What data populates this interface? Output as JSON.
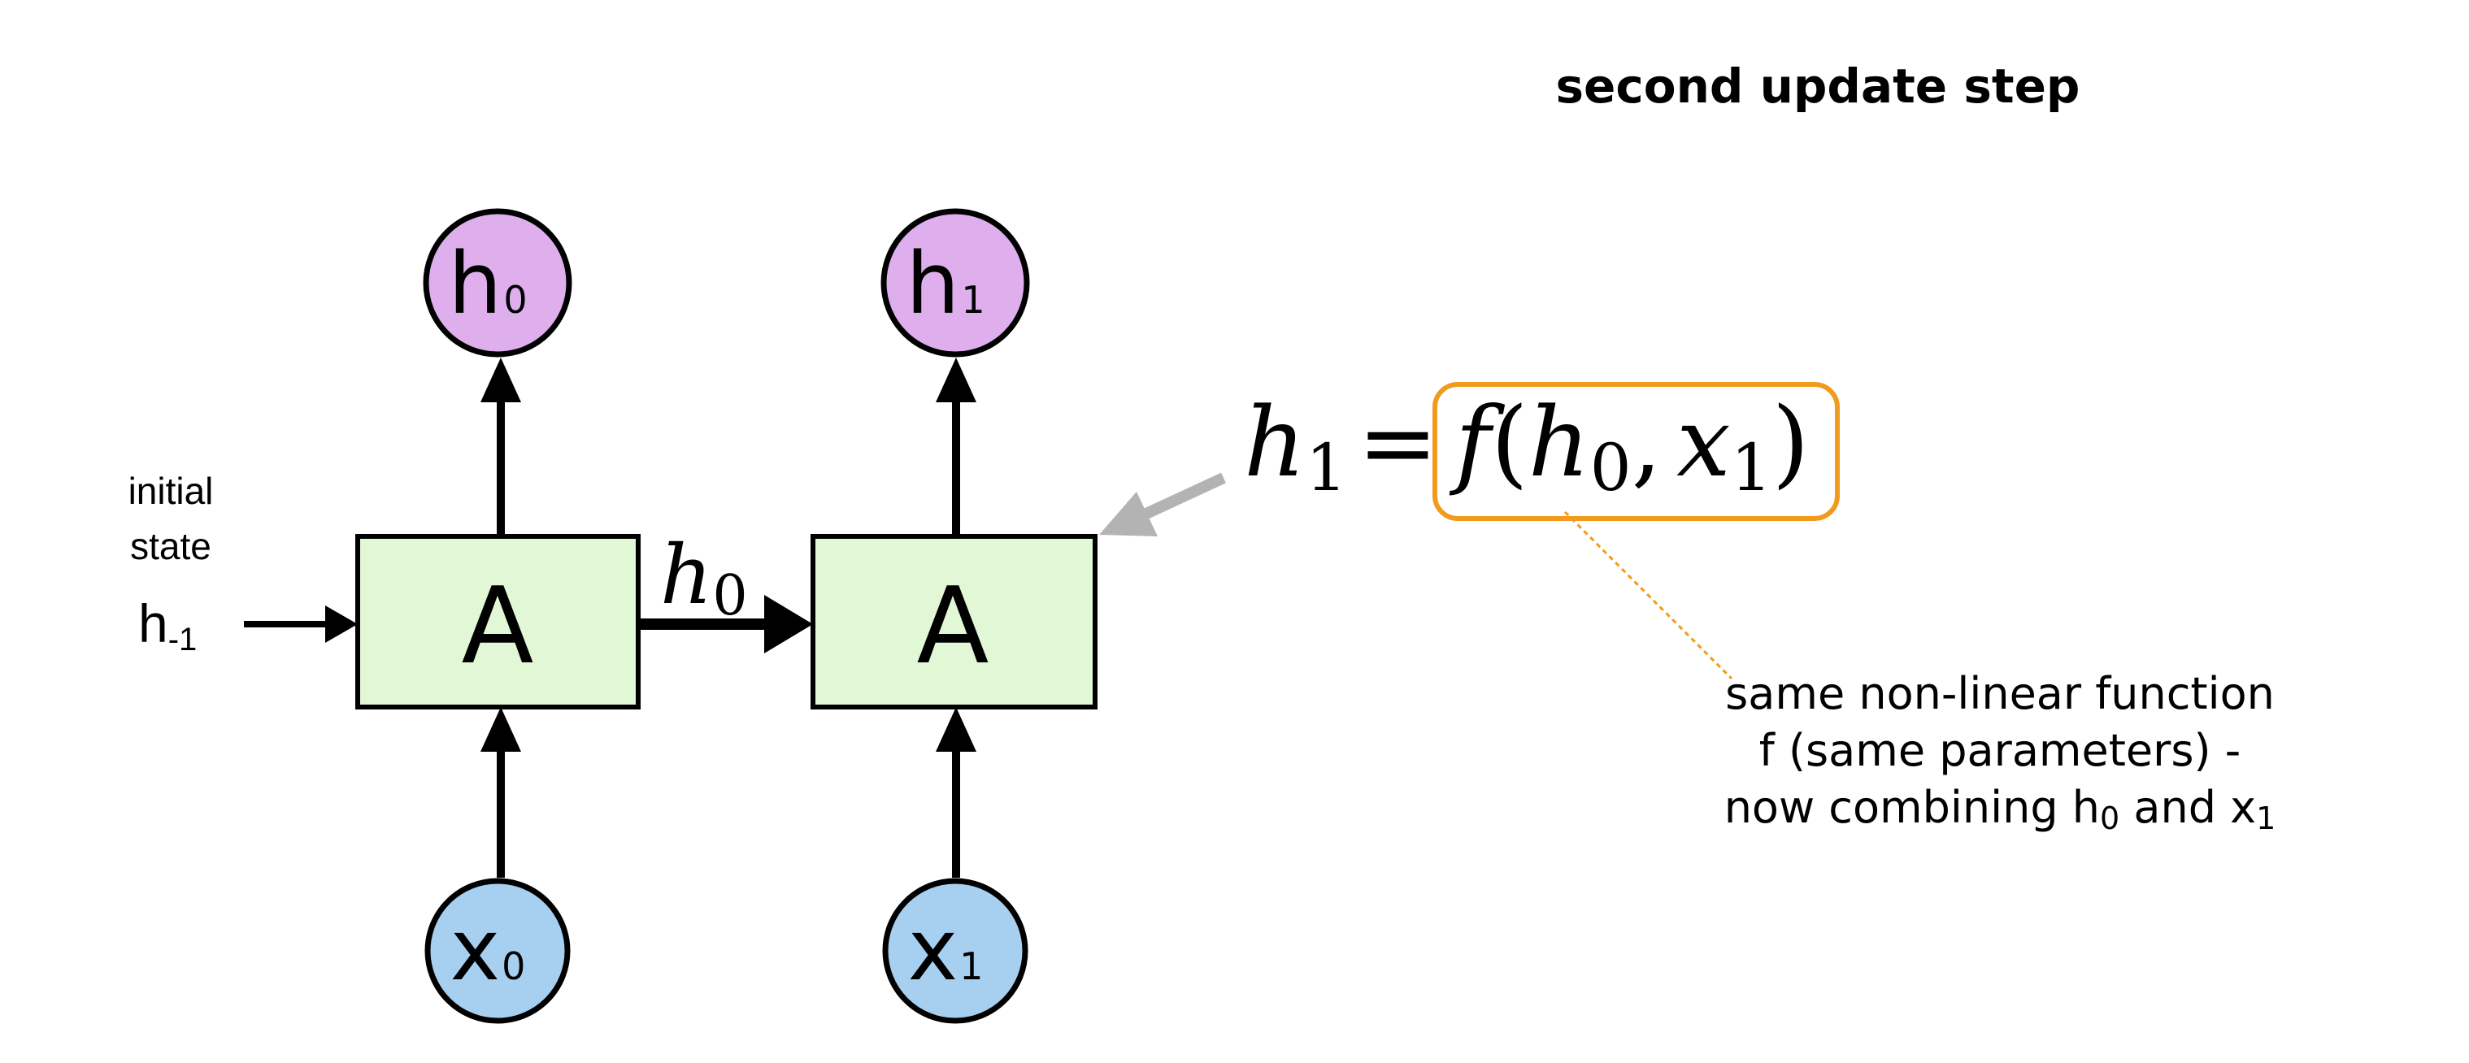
{
  "title": "second update step",
  "initial_state": {
    "line1": "initial",
    "line2": "state",
    "symbol": "h",
    "subscript": "-1"
  },
  "cells": [
    {
      "label": "A",
      "output": {
        "symbol": "h",
        "subscript": "0"
      },
      "input": {
        "symbol": "x",
        "subscript": "0"
      }
    },
    {
      "label": "A",
      "output": {
        "symbol": "h",
        "subscript": "1"
      },
      "input": {
        "symbol": "x",
        "subscript": "1"
      }
    }
  ],
  "hidden_arrow": {
    "symbol": "h",
    "subscript": "0"
  },
  "equation": {
    "lhs": "h",
    "lhs_sub": "1",
    "equals": "=",
    "f": "f",
    "open": "(",
    "arg1": "h",
    "arg1_sub": "0",
    "comma": ",",
    "arg2": "x",
    "arg2_sub": "1",
    "close": ")"
  },
  "annotation": {
    "line1": "same non-linear function",
    "line2": "f (same parameters) -",
    "line3_pre": "now combining h",
    "line3_sub1": "0",
    "line3_mid": " and x",
    "line3_sub2": "1"
  },
  "colors": {
    "cell_fill": "#e1f7d5",
    "output_fill": "#dfafed",
    "input_fill": "#a6cff0",
    "highlight": "#f29a1e",
    "pointer_arrow": "#b3b3b3",
    "stroke": "#000000"
  }
}
